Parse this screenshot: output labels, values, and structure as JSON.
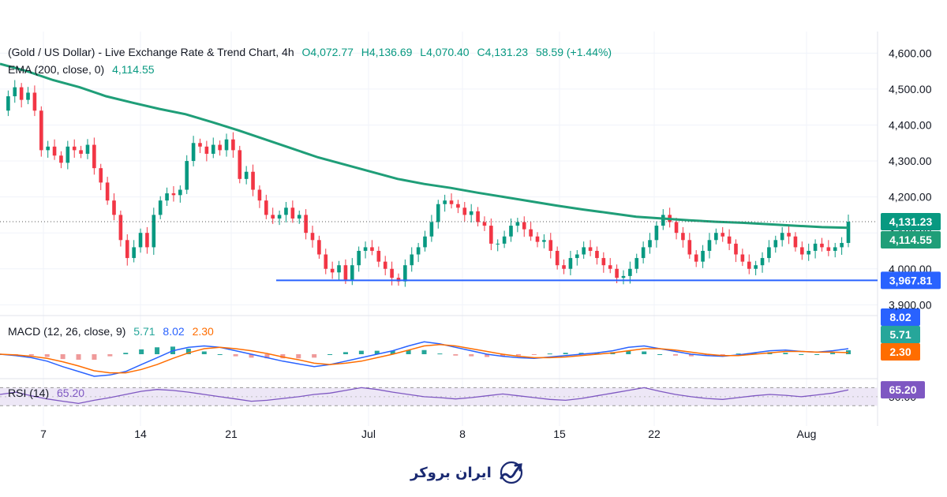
{
  "legend": {
    "title": "(Gold / US Dollar) - Live Exchange Rate & Trend Chart, 4h",
    "open": "O4,072.77",
    "high": "H4,136.69",
    "low": "L4,070.40",
    "close": "C4,131.23",
    "change": "58.59 (+1.44%)",
    "ema_label": "EMA (200, close, 0)",
    "ema_value": "4,114.55",
    "macd_label": "MACD (12, 26, close, 9)",
    "macd_hist": "5.71",
    "macd_macd": "8.02",
    "macd_signal": "2.30",
    "rsi_label": "RSI (14)",
    "rsi_value": "65.20"
  },
  "logo": {
    "text": "ایران بروکر"
  },
  "colors": {
    "ema": "#1f9e78",
    "up": "#089981",
    "down": "#f23645",
    "support": "#2962ff",
    "macd_line": "#2962ff",
    "signal_line": "#ff6d00",
    "rsi_line": "#7e57c2",
    "rsi_band": "#ede7f6"
  },
  "chart_data": [
    {
      "type": "candlestick",
      "title": "(Gold / US Dollar) - Live Exchange Rate & Trend Chart, 4h",
      "y_ticks": [
        "4,600.00",
        "4,500.00",
        "4,400.00",
        "4,300.00",
        "4,200.00",
        "4,100.00",
        "4,000.00",
        "3,900.00"
      ],
      "y_tick_values": [
        4600,
        4500,
        4400,
        4300,
        4200,
        4100,
        4000,
        3900
      ],
      "ylim": [
        3870,
        4660
      ],
      "x_ticks": [
        "7",
        "14",
        "21",
        "Jul",
        "8",
        "15",
        "22",
        "Aug"
      ],
      "price_path": [
        4440,
        4480,
        4505,
        4470,
        4490,
        4440,
        4330,
        4340,
        4315,
        4295,
        4340,
        4330,
        4320,
        4345,
        4280,
        4240,
        4190,
        4150,
        4080,
        4030,
        4060,
        4100,
        4060,
        4150,
        4190,
        4210,
        4205,
        4220,
        4300,
        4350,
        4340,
        4320,
        4345,
        4330,
        4360,
        4330,
        4250,
        4270,
        4220,
        4190,
        4150,
        4140,
        4150,
        4170,
        4140,
        4150,
        4100,
        4080,
        4040,
        4000,
        3990,
        4010,
        3970,
        4010,
        4050,
        4060,
        4050,
        4020,
        4000,
        3975,
        3965,
        4010,
        4040,
        4060,
        4090,
        4130,
        4180,
        4190,
        4180,
        4170,
        4150,
        4160,
        4130,
        4120,
        4070,
        4070,
        4090,
        4120,
        4130,
        4110,
        4090,
        4075,
        4080,
        4050,
        4010,
        4000,
        4030,
        4040,
        4060,
        4050,
        4030,
        4010,
        4000,
        3975,
        3980,
        4000,
        4030,
        4060,
        4080,
        4120,
        4150,
        4130,
        4100,
        4080,
        4040,
        4020,
        4050,
        4080,
        4100,
        4090,
        4070,
        4040,
        4020,
        4000,
        4010,
        4030,
        4060,
        4080,
        4100,
        4090,
        4060,
        4040,
        4050,
        4070,
        4060,
        4050,
        4060,
        4072,
        4131
      ],
      "ema_path": [
        4570,
        4550,
        4525,
        4505,
        4480,
        4462,
        4445,
        4430,
        4408,
        4385,
        4360,
        4335,
        4310,
        4290,
        4270,
        4250,
        4236,
        4225,
        4212,
        4200,
        4188,
        4176,
        4165,
        4155,
        4145,
        4140,
        4135,
        4131,
        4128,
        4124,
        4120,
        4116,
        4114
      ],
      "support_level": 3967.81,
      "current_price": 4131.23,
      "ema_current": 4114.55
    },
    {
      "type": "line",
      "title": "MACD (12, 26, close, 9)",
      "current": {
        "macd": 8.02,
        "histogram": 5.71,
        "signal": 2.3
      },
      "macd_path": [
        0,
        -2,
        -5,
        -10,
        -18,
        -25,
        -32,
        -30,
        -25,
        -15,
        -5,
        5,
        10,
        12,
        10,
        5,
        0,
        -5,
        -10,
        -14,
        -18,
        -15,
        -10,
        -5,
        0,
        5,
        12,
        18,
        15,
        10,
        5,
        0,
        -3,
        -5,
        -6,
        -4,
        -2,
        0,
        2,
        5,
        10,
        12,
        8,
        4,
        0,
        -2,
        -3,
        -1,
        2,
        5,
        6,
        4,
        3,
        5,
        8
      ],
      "signal_path": [
        0,
        -1,
        -3,
        -6,
        -11,
        -17,
        -24,
        -27,
        -27,
        -22,
        -15,
        -6,
        2,
        8,
        10,
        8,
        5,
        1,
        -4,
        -8,
        -13,
        -15,
        -13,
        -10,
        -5,
        0,
        6,
        12,
        14,
        12,
        8,
        4,
        0,
        -3,
        -5,
        -5,
        -4,
        -2,
        0,
        2,
        5,
        8,
        8,
        6,
        3,
        0,
        -2,
        -2,
        0,
        2,
        4,
        4,
        3,
        3,
        2.3
      ]
    },
    {
      "type": "line",
      "title": "RSI (14)",
      "y_ticks": [
        "50.00"
      ],
      "bands": [
        30,
        70
      ],
      "current": 65.2,
      "rsi_path": [
        55,
        60,
        52,
        45,
        40,
        35,
        42,
        48,
        55,
        62,
        66,
        64,
        60,
        55,
        50,
        45,
        40,
        42,
        46,
        50,
        55,
        58,
        64,
        70,
        66,
        60,
        55,
        50,
        48,
        45,
        48,
        52,
        56,
        52,
        48,
        44,
        42,
        46,
        52,
        58,
        64,
        70,
        62,
        55,
        50,
        46,
        44,
        48,
        52,
        55,
        53,
        50,
        54,
        58,
        65.2
      ]
    }
  ]
}
